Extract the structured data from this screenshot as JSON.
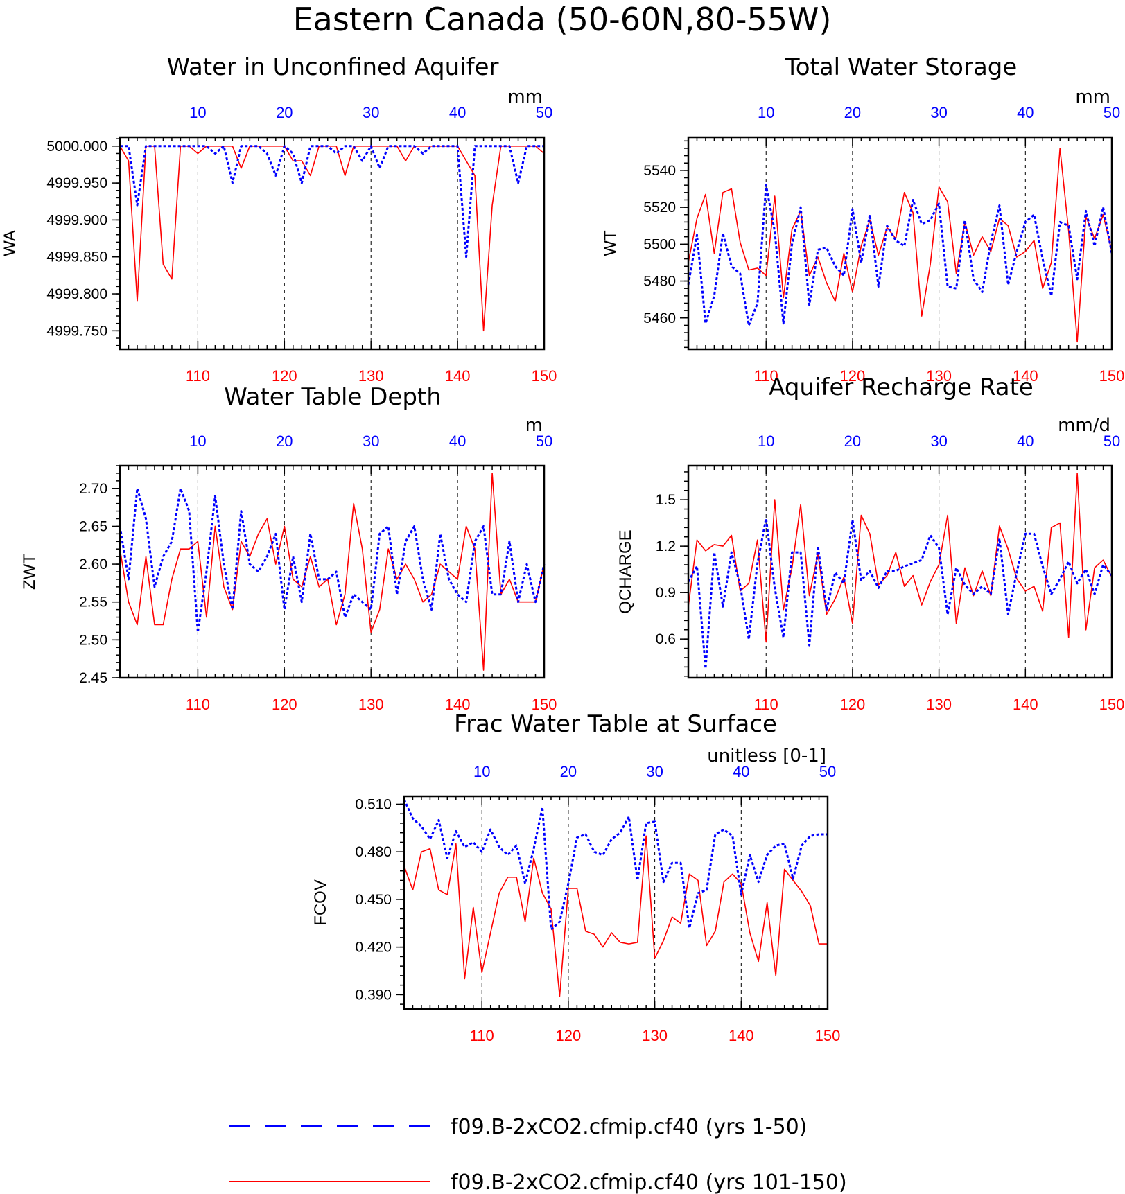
{
  "main_title": "Eastern Canada (50-60N,80-55W)",
  "colors": {
    "series_a": "#0000ff",
    "series_b": "#ff0000",
    "axis": "#000000"
  },
  "legend": {
    "items": [
      {
        "label": "f09.B-2xCO2.cfmip.cf40 (yrs 1-50)",
        "color": "#0000ff",
        "style": "dashed"
      },
      {
        "label": "f09.B-2xCO2.cfmip.cf40 (yrs 101-150)",
        "color": "#ff0000",
        "style": "solid"
      }
    ]
  },
  "chart_data": [
    {
      "type": "line",
      "title": "Water in Unconfined Aquifer",
      "units": "mm",
      "ylabel": "WA",
      "ylim": [
        4999.725,
        5000.012
      ],
      "yticks": [
        4999.75,
        4999.8,
        4999.85,
        4999.9,
        4999.95,
        5000.0
      ],
      "ytick_labels": [
        "4999.750",
        "4999.800",
        "4999.850",
        "4999.900",
        "4999.950",
        "5000.000"
      ],
      "x_top_ticks": [
        "10",
        "20",
        "30",
        "40",
        "50"
      ],
      "x_bottom_ticks": [
        "110",
        "120",
        "130",
        "140",
        "150"
      ],
      "grid": "dashed vertical at ticks",
      "series": [
        {
          "name": "f09.B-2xCO2.cfmip.cf40 (yrs 1-50)",
          "x_range": "1-50",
          "values": [
            5000.0,
            5000.0,
            4999.92,
            5000.0,
            5000.0,
            5000.0,
            5000.0,
            5000.0,
            5000.0,
            5000.0,
            5000.0,
            4999.99,
            5000.0,
            4999.95,
            5000.0,
            5000.0,
            5000.0,
            4999.99,
            4999.96,
            5000.0,
            4999.99,
            4999.95,
            5000.0,
            5000.0,
            5000.0,
            4999.99,
            5000.0,
            5000.0,
            4999.98,
            5000.0,
            4999.97,
            5000.0,
            5000.0,
            5000.0,
            5000.0,
            4999.99,
            5000.0,
            5000.0,
            5000.0,
            5000.0,
            4999.85,
            5000.0,
            5000.0,
            5000.0,
            5000.0,
            5000.0,
            4999.95,
            5000.0,
            5000.0,
            5000.0
          ]
        },
        {
          "name": "f09.B-2xCO2.cfmip.cf40 (yrs 101-150)",
          "x_range": "101-150",
          "values": [
            5000.0,
            4999.98,
            4999.79,
            5000.0,
            5000.0,
            4999.84,
            4999.82,
            5000.0,
            5000.0,
            4999.99,
            5000.0,
            5000.0,
            5000.0,
            5000.0,
            4999.97,
            5000.0,
            5000.0,
            5000.0,
            5000.0,
            5000.0,
            4999.98,
            4999.98,
            4999.96,
            5000.0,
            5000.0,
            5000.0,
            4999.96,
            5000.0,
            5000.0,
            5000.0,
            5000.0,
            5000.0,
            5000.0,
            4999.98,
            5000.0,
            5000.0,
            5000.0,
            5000.0,
            5000.0,
            5000.0,
            4999.98,
            4999.96,
            4999.75,
            4999.92,
            5000.0,
            5000.0,
            5000.0,
            5000.0,
            5000.0,
            4999.99
          ]
        }
      ]
    },
    {
      "type": "line",
      "title": "Total Water Storage",
      "units": "mm",
      "ylabel": "WT",
      "ylim": [
        5443,
        5558
      ],
      "yticks": [
        5460,
        5480,
        5500,
        5520,
        5540
      ],
      "ytick_labels": [
        "5460",
        "5480",
        "5500",
        "5520",
        "5540"
      ],
      "x_top_ticks": [
        "10",
        "20",
        "30",
        "40",
        "50"
      ],
      "x_bottom_ticks": [
        "110",
        "120",
        "130",
        "140",
        "150"
      ],
      "grid": "dashed vertical at ticks",
      "series": [
        {
          "name": "f09.B-2xCO2.cfmip.cf40 (yrs 1-50)",
          "x_range": "1-50",
          "values": [
            5478,
            5505,
            5457,
            5472,
            5506,
            5488,
            5484,
            5456,
            5468,
            5532,
            5507,
            5457,
            5500,
            5520,
            5467,
            5497,
            5498,
            5488,
            5483,
            5519,
            5490,
            5516,
            5477,
            5510,
            5502,
            5499,
            5524,
            5511,
            5513,
            5522,
            5477,
            5476,
            5513,
            5481,
            5474,
            5501,
            5521,
            5478,
            5496,
            5512,
            5516,
            5492,
            5472,
            5512,
            5510,
            5481,
            5518,
            5499,
            5520,
            5495
          ]
        },
        {
          "name": "f09.B-2xCO2.cfmip.cf40 (yrs 101-150)",
          "x_range": "101-150",
          "values": [
            5490,
            5514,
            5527,
            5495,
            5528,
            5530,
            5501,
            5486,
            5487,
            5483,
            5526,
            5471,
            5508,
            5518,
            5483,
            5493,
            5479,
            5469,
            5495,
            5474,
            5499,
            5513,
            5494,
            5509,
            5503,
            5528,
            5517,
            5461,
            5489,
            5531,
            5523,
            5484,
            5512,
            5494,
            5504,
            5496,
            5514,
            5510,
            5493,
            5496,
            5502,
            5476,
            5490,
            5552,
            5507,
            5447,
            5515,
            5503,
            5516,
            5496
          ]
        }
      ]
    },
    {
      "type": "line",
      "title": "Water Table Depth",
      "units": "m",
      "ylabel": "ZWT",
      "ylim": [
        2.45,
        2.73
      ],
      "yticks": [
        2.45,
        2.5,
        2.55,
        2.6,
        2.65,
        2.7
      ],
      "ytick_labels": [
        "2.45",
        "2.50",
        "2.55",
        "2.60",
        "2.65",
        "2.70"
      ],
      "x_top_ticks": [
        "10",
        "20",
        "30",
        "40",
        "50"
      ],
      "x_bottom_ticks": [
        "110",
        "120",
        "130",
        "140",
        "150"
      ],
      "grid": "dashed vertical at ticks",
      "series": [
        {
          "name": "f09.B-2xCO2.cfmip.cf40 (yrs 1-50)",
          "x_range": "1-50",
          "values": [
            2.65,
            2.58,
            2.7,
            2.66,
            2.57,
            2.61,
            2.63,
            2.7,
            2.67,
            2.51,
            2.59,
            2.69,
            2.6,
            2.54,
            2.67,
            2.6,
            2.59,
            2.61,
            2.64,
            2.54,
            2.61,
            2.55,
            2.64,
            2.58,
            2.58,
            2.59,
            2.53,
            2.56,
            2.55,
            2.54,
            2.64,
            2.65,
            2.56,
            2.63,
            2.65,
            2.58,
            2.54,
            2.64,
            2.58,
            2.56,
            2.55,
            2.63,
            2.65,
            2.56,
            2.56,
            2.63,
            2.55,
            2.6,
            2.55,
            2.6
          ]
        },
        {
          "name": "f09.B-2xCO2.cfmip.cf40 (yrs 101-150)",
          "x_range": "101-150",
          "values": [
            2.62,
            2.55,
            2.52,
            2.61,
            2.52,
            2.52,
            2.58,
            2.62,
            2.62,
            2.63,
            2.53,
            2.65,
            2.57,
            2.54,
            2.63,
            2.61,
            2.64,
            2.66,
            2.6,
            2.65,
            2.58,
            2.57,
            2.61,
            2.57,
            2.58,
            2.52,
            2.56,
            2.68,
            2.62,
            2.51,
            2.54,
            2.62,
            2.58,
            2.6,
            2.58,
            2.55,
            2.56,
            2.6,
            2.59,
            2.58,
            2.65,
            2.62,
            2.46,
            2.72,
            2.56,
            2.58,
            2.55,
            2.55,
            2.55,
            2.6
          ]
        }
      ]
    },
    {
      "type": "line",
      "title": "Aquifer Recharge Rate",
      "units": "mm/d",
      "ylabel": "QCHARGE",
      "ylim": [
        0.35,
        1.72
      ],
      "yticks": [
        0.6,
        0.9,
        1.2,
        1.5
      ],
      "ytick_labels": [
        "0.6",
        "0.9",
        "1.2",
        "1.5"
      ],
      "x_top_ticks": [
        "10",
        "20",
        "30",
        "40",
        "50"
      ],
      "x_bottom_ticks": [
        "110",
        "120",
        "130",
        "140",
        "150"
      ],
      "grid": "dashed vertical at ticks",
      "series": [
        {
          "name": "f09.B-2xCO2.cfmip.cf40 (yrs 1-50)",
          "x_range": "1-50",
          "values": [
            0.97,
            1.07,
            0.41,
            1.16,
            0.81,
            1.16,
            0.95,
            0.6,
            1.09,
            1.38,
            0.93,
            0.61,
            1.16,
            1.16,
            0.56,
            1.2,
            0.79,
            1.03,
            0.96,
            1.37,
            0.98,
            1.04,
            0.93,
            1.04,
            1.04,
            1.07,
            1.09,
            1.11,
            1.27,
            1.19,
            0.76,
            1.06,
            0.95,
            0.89,
            0.94,
            0.89,
            1.25,
            0.76,
            1.03,
            1.28,
            1.28,
            1.07,
            0.89,
            0.99,
            1.1,
            0.96,
            1.05,
            0.89,
            1.08,
            1.01
          ]
        },
        {
          "name": "f09.B-2xCO2.cfmip.cf40 (yrs 101-150)",
          "x_range": "101-150",
          "values": [
            0.81,
            1.24,
            1.17,
            1.21,
            1.2,
            1.27,
            0.91,
            0.96,
            1.24,
            0.58,
            1.5,
            0.79,
            1.06,
            1.47,
            0.88,
            1.15,
            0.76,
            0.86,
            1.0,
            0.7,
            1.4,
            1.28,
            0.95,
            1.01,
            1.16,
            0.94,
            1.01,
            0.82,
            0.97,
            1.08,
            1.4,
            0.7,
            1.06,
            0.88,
            1.04,
            0.88,
            1.33,
            1.18,
            0.99,
            0.91,
            0.94,
            0.78,
            1.32,
            1.35,
            0.61,
            1.67,
            0.66,
            1.06,
            1.11,
            1.0
          ]
        }
      ]
    },
    {
      "type": "line",
      "title": "Frac Water Table at Surface",
      "units": "unitless [0-1]",
      "ylabel": "FCOV",
      "ylim": [
        0.381,
        0.515
      ],
      "yticks": [
        0.39,
        0.42,
        0.45,
        0.48,
        0.51
      ],
      "ytick_labels": [
        "0.390",
        "0.420",
        "0.450",
        "0.480",
        "0.510"
      ],
      "x_top_ticks": [
        "10",
        "20",
        "30",
        "40",
        "50"
      ],
      "x_bottom_ticks": [
        "110",
        "120",
        "130",
        "140",
        "150"
      ],
      "grid": "dashed vertical at ticks",
      "series": [
        {
          "name": "f09.B-2xCO2.cfmip.cf40 (yrs 1-50)",
          "x_range": "1-50",
          "values": [
            0.513,
            0.501,
            0.496,
            0.488,
            0.5,
            0.476,
            0.493,
            0.483,
            0.486,
            0.48,
            0.494,
            0.483,
            0.478,
            0.484,
            0.46,
            0.482,
            0.508,
            0.431,
            0.436,
            0.46,
            0.489,
            0.491,
            0.48,
            0.478,
            0.488,
            0.492,
            0.502,
            0.462,
            0.498,
            0.499,
            0.461,
            0.473,
            0.473,
            0.432,
            0.454,
            0.456,
            0.491,
            0.494,
            0.49,
            0.453,
            0.478,
            0.461,
            0.478,
            0.484,
            0.485,
            0.463,
            0.484,
            0.49,
            0.491,
            0.491
          ]
        },
        {
          "name": "f09.B-2xCO2.cfmip.cf40 (yrs 101-150)",
          "x_range": "101-150",
          "values": [
            0.471,
            0.456,
            0.48,
            0.482,
            0.456,
            0.453,
            0.485,
            0.4,
            0.445,
            0.404,
            0.429,
            0.454,
            0.464,
            0.464,
            0.436,
            0.476,
            0.454,
            0.444,
            0.389,
            0.457,
            0.457,
            0.43,
            0.428,
            0.42,
            0.429,
            0.423,
            0.422,
            0.423,
            0.49,
            0.413,
            0.424,
            0.439,
            0.435,
            0.466,
            0.462,
            0.421,
            0.43,
            0.461,
            0.466,
            0.46,
            0.429,
            0.411,
            0.448,
            0.402,
            0.469,
            0.462,
            0.455,
            0.446,
            0.422,
            0.422
          ]
        }
      ]
    }
  ]
}
